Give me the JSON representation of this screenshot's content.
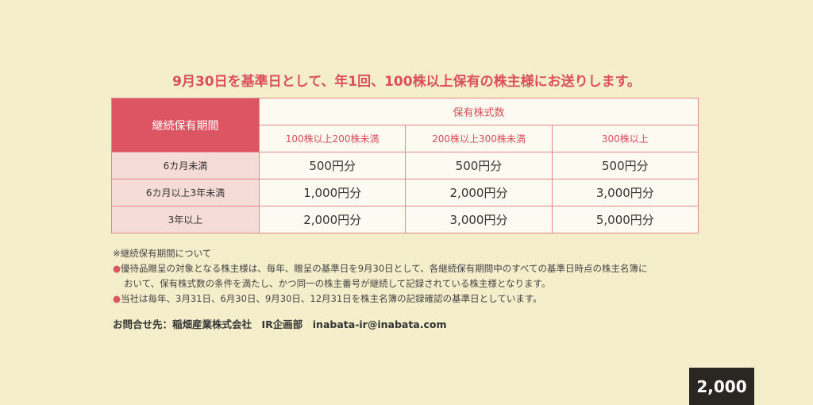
{
  "headline": "9月30日を基準日として、年1回、100株以上保有の株主様にお送りします。",
  "table": {
    "corner": "継続保有期間",
    "group": "保有株式数",
    "columns": [
      "100株以上200株未満",
      "200株以上300株未満",
      "300株以上"
    ],
    "rows": [
      {
        "label": "6カ月未満",
        "values": [
          "500円分",
          "500円分",
          "500円分"
        ]
      },
      {
        "label": "6カ月以上3年未満",
        "values": [
          "1,000円分",
          "2,000円分",
          "3,000円分"
        ]
      },
      {
        "label": "3年以上",
        "values": [
          "2,000円分",
          "3,000円分",
          "5,000円分"
        ]
      }
    ]
  },
  "notes": {
    "title": "※継続保有期間について",
    "bullet1_line1": "優待品贈呈の対象となる株主様は、毎年、贈呈の基準日を9月30日として、各継続保有期間中のすべての基準日時点の株主名簿に",
    "bullet1_line2": "おいて、保有株式数の条件を満たし、かつ同一の株主番号が継続して記録されている株主様となります。",
    "bullet2": "当社は毎年、3月31日、6月30日、9月30日、12月31日を株主名簿の記録確認の基準日としています。",
    "bullet_symbol": "●"
  },
  "contact": "お問合せ先：稲畑産業株式会社　IR企画部　inabata-ir@inabata.com",
  "badge": "2,000"
}
